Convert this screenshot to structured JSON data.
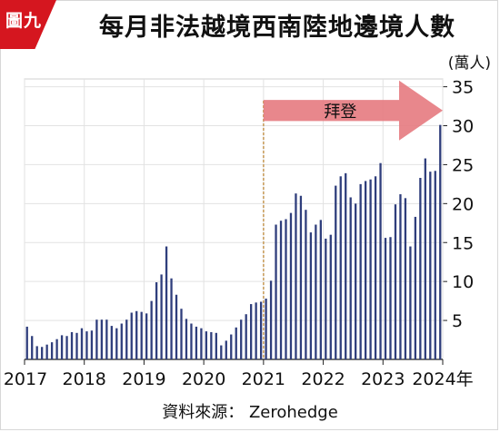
{
  "figure_tag": "圖九",
  "chart_data": {
    "type": "bar",
    "title": "每月非法越境西南陸地邊境人數",
    "unit_label": "(萬人)",
    "source": "資料來源： Zerohedge",
    "x_axis_labels": [
      "2017",
      "2018",
      "2019",
      "2020",
      "2021",
      "2022",
      "2023",
      "2024年"
    ],
    "x_range": [
      "2017-01",
      "2024-01"
    ],
    "y_ticks": [
      5,
      10,
      15,
      20,
      25,
      30,
      35
    ],
    "ylim": [
      0,
      36
    ],
    "y_axis_side": "right",
    "grid": "horizontal and vertical",
    "bar_color": "#2f3e7c",
    "annotation": {
      "text": "拜登",
      "start": "2021-01",
      "end": "2024-01",
      "arrow_color": "#e57a80",
      "line_color": "#c9a060"
    },
    "series": [
      {
        "x": [
          "2017-01",
          "2017-02",
          "2017-03",
          "2017-04",
          "2017-05",
          "2017-06",
          "2017-07",
          "2017-08",
          "2017-09",
          "2017-10",
          "2017-11",
          "2017-12",
          "2018-01",
          "2018-02",
          "2018-03",
          "2018-04",
          "2018-05",
          "2018-06",
          "2018-07",
          "2018-08",
          "2018-09",
          "2018-10",
          "2018-11",
          "2018-12",
          "2019-01",
          "2019-02",
          "2019-03",
          "2019-04",
          "2019-05",
          "2019-06",
          "2019-07",
          "2019-08",
          "2019-09",
          "2019-10",
          "2019-11",
          "2019-12",
          "2020-01",
          "2020-02",
          "2020-03",
          "2020-04",
          "2020-05",
          "2020-06",
          "2020-07",
          "2020-08",
          "2020-09",
          "2020-10",
          "2020-11",
          "2020-12",
          "2021-01",
          "2021-02",
          "2021-03",
          "2021-04",
          "2021-05",
          "2021-06",
          "2021-07",
          "2021-08",
          "2021-09",
          "2021-10",
          "2021-11",
          "2021-12",
          "2022-01",
          "2022-02",
          "2022-03",
          "2022-04",
          "2022-05",
          "2022-06",
          "2022-07",
          "2022-08",
          "2022-09",
          "2022-10",
          "2022-11",
          "2022-12",
          "2023-01",
          "2023-02",
          "2023-03",
          "2023-04",
          "2023-05",
          "2023-06",
          "2023-07",
          "2023-08",
          "2023-09",
          "2023-10",
          "2023-11",
          "2023-12"
        ],
        "values": [
          4.2,
          3.0,
          1.7,
          1.6,
          1.9,
          2.2,
          2.6,
          3.1,
          3.0,
          3.5,
          3.4,
          4.0,
          3.6,
          3.7,
          5.1,
          5.1,
          5.1,
          4.3,
          4.0,
          4.6,
          5.1,
          6.0,
          6.2,
          6.1,
          5.9,
          7.5,
          9.9,
          10.9,
          14.5,
          10.4,
          8.3,
          6.5,
          5.2,
          4.6,
          4.2,
          4.0,
          3.6,
          3.5,
          3.4,
          1.8,
          2.4,
          3.2,
          4.1,
          5.1,
          5.8,
          7.1,
          7.3,
          7.4,
          7.8,
          10.1,
          17.3,
          17.8,
          18.0,
          18.8,
          21.3,
          21.0,
          19.2,
          16.3,
          17.3,
          17.9,
          15.5,
          16.0,
          22.3,
          23.5,
          23.9,
          20.8,
          20.0,
          22.5,
          22.9,
          23.1,
          23.5,
          25.2,
          15.6,
          15.7,
          19.9,
          21.2,
          20.7,
          14.5,
          18.3,
          23.3,
          25.8,
          24.1,
          24.2,
          30.1
        ]
      }
    ]
  }
}
